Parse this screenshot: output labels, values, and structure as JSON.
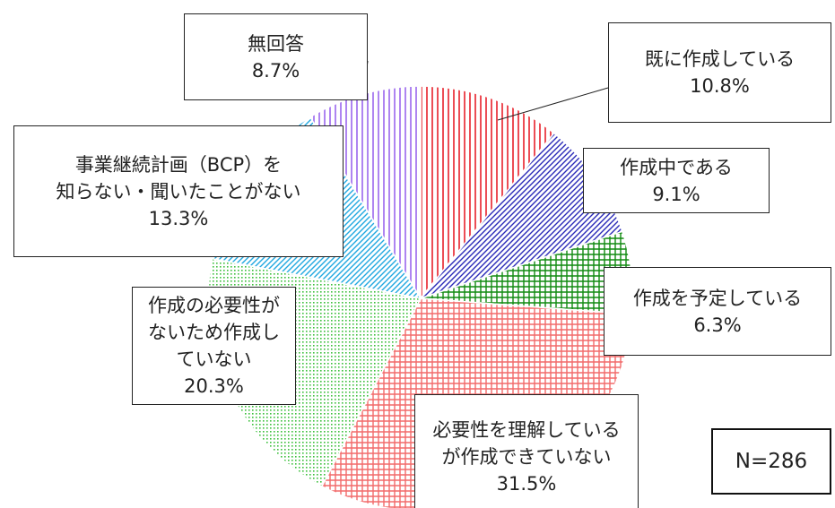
{
  "chart_data": {
    "type": "pie",
    "categories": [
      "既に作成している",
      "作成中である",
      "作成を予定している",
      "必要性を理解している\nが作成できていない",
      "作成の必要性が\nないため作成し\nていない",
      "事業継続計画（BCP）を\n知らない・聞いたことがない",
      "無回答"
    ],
    "values": [
      10.8,
      9.1,
      6.3,
      31.5,
      20.3,
      13.3,
      8.7
    ],
    "value_labels": [
      "10.8%",
      "9.1%",
      "6.3%",
      "31.5%",
      "20.3%",
      "13.3%",
      "8.7%"
    ],
    "colors": [
      "#e8202a",
      "#2a2ab8",
      "#108a10",
      "#f26a6a",
      "#3cc03c",
      "#20a8e0",
      "#9a66ee"
    ],
    "note": "N=286"
  }
}
